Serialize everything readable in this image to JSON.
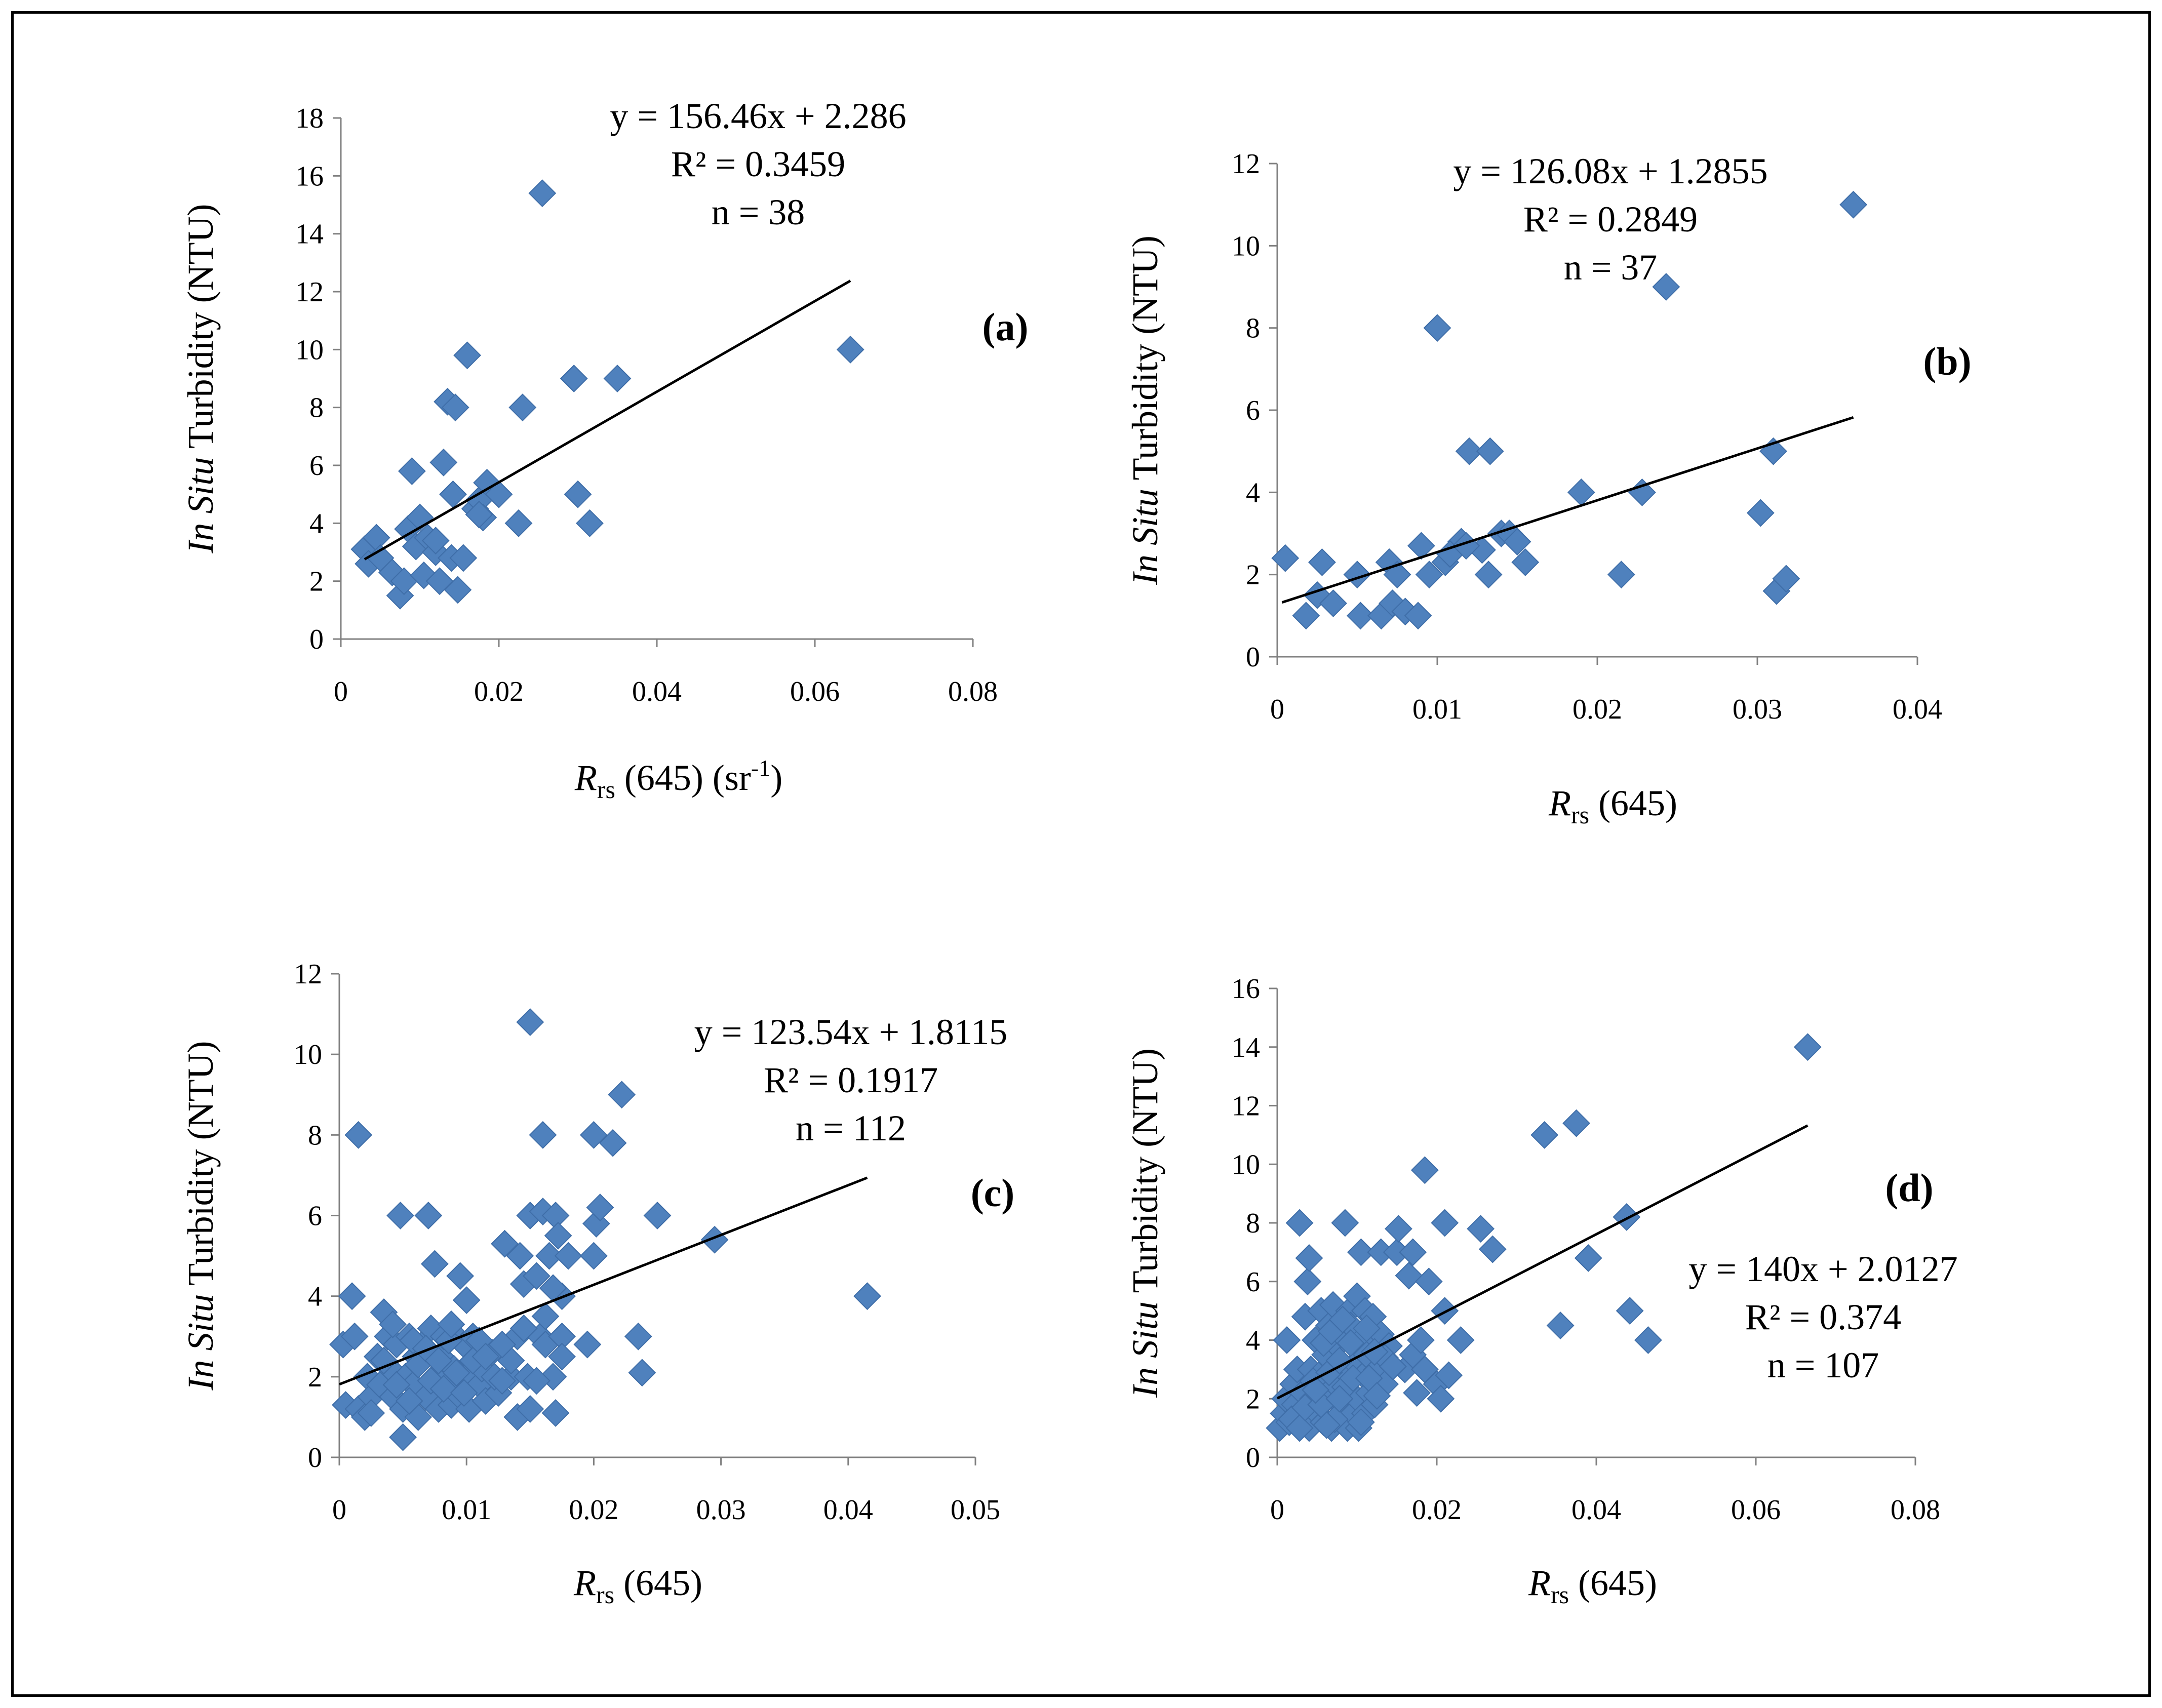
{
  "chart_data": [
    {
      "type": "scatter",
      "panel_label": "(a)",
      "ylabel_italic": "In Situ",
      "ylabel_rest": " Turbidity (NTU)",
      "xlabel_main": "R",
      "xlabel_sub": "rs",
      "xlabel_rest": " (645) (sr",
      "xlabel_sup": "-1",
      "xlabel_close": ")",
      "xlim": [
        0,
        0.08
      ],
      "ylim": [
        0,
        18
      ],
      "xticks": [
        0,
        0.02,
        0.04,
        0.06,
        0.08
      ],
      "xtick_labels": [
        "0",
        "0.02",
        "0.04",
        "0.06",
        "0.08"
      ],
      "yticks": [
        0,
        2,
        4,
        6,
        8,
        10,
        12,
        14,
        16,
        18
      ],
      "ytick_labels": [
        "0",
        "2",
        "4",
        "6",
        "8",
        "10",
        "12",
        "14",
        "16",
        "18"
      ],
      "equation": "y = 156.46x + 2.286",
      "r2": "R² = 0.3459",
      "n": "n = 38",
      "trendline": {
        "slope": 156.46,
        "intercept": 2.286,
        "x_range": [
          0.003,
          0.0645
        ]
      },
      "points": [
        [
          0.003,
          3.1
        ],
        [
          0.0035,
          2.6
        ],
        [
          0.0045,
          3.5
        ],
        [
          0.005,
          2.8
        ],
        [
          0.0065,
          2.3
        ],
        [
          0.0075,
          1.5
        ],
        [
          0.008,
          2.0
        ],
        [
          0.0085,
          3.8
        ],
        [
          0.009,
          5.8
        ],
        [
          0.0095,
          3.2
        ],
        [
          0.01,
          4.2
        ],
        [
          0.0105,
          2.2
        ],
        [
          0.011,
          3.5
        ],
        [
          0.012,
          3.0
        ],
        [
          0.0125,
          2.0
        ],
        [
          0.013,
          6.1
        ],
        [
          0.0135,
          8.2
        ],
        [
          0.014,
          2.8
        ],
        [
          0.0142,
          5.0
        ],
        [
          0.0145,
          8.0
        ],
        [
          0.0148,
          1.7
        ],
        [
          0.0155,
          2.8
        ],
        [
          0.016,
          9.8
        ],
        [
          0.017,
          4.5
        ],
        [
          0.0175,
          4.8
        ],
        [
          0.018,
          4.2
        ],
        [
          0.0185,
          5.4
        ],
        [
          0.02,
          5.0
        ],
        [
          0.0225,
          4.0
        ],
        [
          0.023,
          8.0
        ],
        [
          0.0255,
          15.4
        ],
        [
          0.0295,
          9.0
        ],
        [
          0.03,
          5.0
        ],
        [
          0.0315,
          4.0
        ],
        [
          0.035,
          9.0
        ],
        [
          0.0645,
          10.0
        ],
        [
          0.0175,
          4.3
        ],
        [
          0.012,
          3.4
        ]
      ]
    },
    {
      "type": "scatter",
      "panel_label": "(b)",
      "ylabel_italic": "In Situ",
      "ylabel_rest": " Turbidity (NTU)",
      "xlabel_main": "R",
      "xlabel_sub": "rs",
      "xlabel_rest": " (645)",
      "xlim": [
        0,
        0.04
      ],
      "ylim": [
        0,
        12
      ],
      "xticks": [
        0,
        0.01,
        0.02,
        0.03,
        0.04
      ],
      "xtick_labels": [
        "0",
        "0.01",
        "0.02",
        "0.03",
        "0.04"
      ],
      "yticks": [
        0,
        2,
        4,
        6,
        8,
        10,
        12
      ],
      "ytick_labels": [
        "0",
        "2",
        "4",
        "6",
        "8",
        "10",
        "12"
      ],
      "equation": "y = 126.08x + 1.2855",
      "r2": "R² = 0.2849",
      "n": "n = 37",
      "trendline": {
        "slope": 126.08,
        "intercept": 1.2855,
        "x_range": [
          0.0003,
          0.036
        ]
      },
      "points": [
        [
          0.0005,
          2.4
        ],
        [
          0.0018,
          1.0
        ],
        [
          0.0025,
          1.5
        ],
        [
          0.0028,
          2.3
        ],
        [
          0.0035,
          1.3
        ],
        [
          0.005,
          2.0
        ],
        [
          0.0052,
          1.0
        ],
        [
          0.0065,
          1.0
        ],
        [
          0.007,
          2.3
        ],
        [
          0.0072,
          1.3
        ],
        [
          0.0075,
          2.0
        ],
        [
          0.008,
          1.1
        ],
        [
          0.0088,
          1.0
        ],
        [
          0.009,
          2.7
        ],
        [
          0.0095,
          2.0
        ],
        [
          0.01,
          8.0
        ],
        [
          0.0105,
          2.3
        ],
        [
          0.0115,
          2.8
        ],
        [
          0.012,
          5.0
        ],
        [
          0.0128,
          2.6
        ],
        [
          0.0132,
          2.0
        ],
        [
          0.0133,
          5.0
        ],
        [
          0.014,
          3.0
        ],
        [
          0.0145,
          3.0
        ],
        [
          0.015,
          2.8
        ],
        [
          0.0155,
          2.3
        ],
        [
          0.019,
          4.0
        ],
        [
          0.0215,
          2.0
        ],
        [
          0.0228,
          4.0
        ],
        [
          0.0243,
          9.0
        ],
        [
          0.0302,
          3.5
        ],
        [
          0.031,
          5.0
        ],
        [
          0.0312,
          1.6
        ],
        [
          0.0318,
          1.9
        ],
        [
          0.036,
          11.0
        ],
        [
          0.0108,
          2.5
        ],
        [
          0.0118,
          2.7
        ]
      ]
    },
    {
      "type": "scatter",
      "panel_label": "(c)",
      "ylabel_italic": "In Situ",
      "ylabel_rest": " Turbidity (NTU)",
      "xlabel_main": "R",
      "xlabel_sub": "rs",
      "xlabel_rest": " (645)",
      "xlim": [
        0,
        0.05
      ],
      "ylim": [
        0,
        12
      ],
      "xticks": [
        0,
        0.01,
        0.02,
        0.03,
        0.04,
        0.05
      ],
      "xtick_labels": [
        "0",
        "0.01",
        "0.02",
        "0.03",
        "0.04",
        "0.05"
      ],
      "yticks": [
        0,
        2,
        4,
        6,
        8,
        10,
        12
      ],
      "ytick_labels": [
        "0",
        "2",
        "4",
        "6",
        "8",
        "10",
        "12"
      ],
      "equation": "y = 123.54x + 1.8115",
      "r2": "R² = 0.1917",
      "n": "n = 112",
      "trendline": {
        "slope": 123.54,
        "intercept": 1.8115,
        "x_range": [
          0.0,
          0.0415
        ]
      },
      "points": [
        [
          0.0003,
          2.8
        ],
        [
          0.0005,
          1.3
        ],
        [
          0.001,
          4.0
        ],
        [
          0.0012,
          3.0
        ],
        [
          0.0015,
          8.0
        ],
        [
          0.0015,
          1.2
        ],
        [
          0.002,
          1.0
        ],
        [
          0.0022,
          2.0
        ],
        [
          0.0025,
          1.5
        ],
        [
          0.003,
          2.5
        ],
        [
          0.0032,
          1.8
        ],
        [
          0.0035,
          3.6
        ],
        [
          0.0038,
          3.0
        ],
        [
          0.004,
          2.2
        ],
        [
          0.0042,
          1.5
        ],
        [
          0.0045,
          2.8
        ],
        [
          0.0048,
          6.0
        ],
        [
          0.005,
          0.5
        ],
        [
          0.005,
          1.2
        ],
        [
          0.0052,
          2.0
        ],
        [
          0.0055,
          3.0
        ],
        [
          0.0058,
          1.8
        ],
        [
          0.006,
          2.5
        ],
        [
          0.0062,
          1.0
        ],
        [
          0.0065,
          2.8
        ],
        [
          0.0068,
          1.5
        ],
        [
          0.007,
          6.0
        ],
        [
          0.0072,
          3.2
        ],
        [
          0.0075,
          4.8
        ],
        [
          0.0075,
          2.0
        ],
        [
          0.0078,
          1.2
        ],
        [
          0.008,
          2.5
        ],
        [
          0.0082,
          3.0
        ],
        [
          0.0085,
          1.8
        ],
        [
          0.0088,
          1.3
        ],
        [
          0.009,
          2.2
        ],
        [
          0.0092,
          3.0
        ],
        [
          0.0095,
          4.5
        ],
        [
          0.0095,
          1.5
        ],
        [
          0.0098,
          2.8
        ],
        [
          0.01,
          3.9
        ],
        [
          0.01,
          2.0
        ],
        [
          0.0102,
          1.2
        ],
        [
          0.0105,
          3.0
        ],
        [
          0.0108,
          2.5
        ],
        [
          0.011,
          1.8
        ],
        [
          0.0112,
          2.2
        ],
        [
          0.0115,
          1.4
        ],
        [
          0.012,
          2.6
        ],
        [
          0.0125,
          1.6
        ],
        [
          0.013,
          5.3
        ],
        [
          0.0135,
          2.0
        ],
        [
          0.014,
          1.0
        ],
        [
          0.014,
          3.0
        ],
        [
          0.0142,
          5.0
        ],
        [
          0.0145,
          4.3
        ],
        [
          0.0148,
          2.0
        ],
        [
          0.015,
          6.0
        ],
        [
          0.015,
          10.8
        ],
        [
          0.015,
          1.2
        ],
        [
          0.0155,
          4.5
        ],
        [
          0.0158,
          3.0
        ],
        [
          0.016,
          8.0
        ],
        [
          0.016,
          6.1
        ],
        [
          0.0162,
          2.8
        ],
        [
          0.0165,
          5.0
        ],
        [
          0.0168,
          2.0
        ],
        [
          0.017,
          6.0
        ],
        [
          0.017,
          1.1
        ],
        [
          0.0172,
          5.5
        ],
        [
          0.0175,
          4.0
        ],
        [
          0.0175,
          3.0
        ],
        [
          0.018,
          5.0
        ],
        [
          0.0195,
          2.8
        ],
        [
          0.02,
          8.0
        ],
        [
          0.02,
          5.0
        ],
        [
          0.0202,
          5.8
        ],
        [
          0.0205,
          6.2
        ],
        [
          0.0215,
          7.8
        ],
        [
          0.0222,
          9.0
        ],
        [
          0.0235,
          3.0
        ],
        [
          0.0238,
          2.1
        ],
        [
          0.025,
          6.0
        ],
        [
          0.0295,
          5.4
        ],
        [
          0.0415,
          4.0
        ],
        [
          0.0035,
          2.4
        ],
        [
          0.0045,
          1.8
        ],
        [
          0.0058,
          2.9
        ],
        [
          0.0062,
          2.3
        ],
        [
          0.0068,
          2.7
        ],
        [
          0.0072,
          1.9
        ],
        [
          0.0078,
          2.4
        ],
        [
          0.0082,
          1.7
        ],
        [
          0.0086,
          2.9
        ],
        [
          0.0092,
          2.1
        ],
        [
          0.0098,
          1.6
        ],
        [
          0.0105,
          2.4
        ],
        [
          0.011,
          2.9
        ],
        [
          0.0115,
          2.5
        ],
        [
          0.0122,
          2.0
        ],
        [
          0.0128,
          1.9
        ],
        [
          0.0135,
          2.4
        ],
        [
          0.0145,
          3.2
        ],
        [
          0.0155,
          1.9
        ],
        [
          0.0162,
          3.5
        ],
        [
          0.0168,
          4.2
        ],
        [
          0.0175,
          2.5
        ],
        [
          0.0025,
          1.1
        ],
        [
          0.0042,
          3.3
        ],
        [
          0.0055,
          1.4
        ],
        [
          0.0088,
          3.3
        ],
        [
          0.0128,
          2.8
        ]
      ]
    },
    {
      "type": "scatter",
      "panel_label": "(d)",
      "ylabel_italic": "In Situ",
      "ylabel_rest": " Turbidity (NTU)",
      "xlabel_main": "R",
      "xlabel_sub": "rs",
      "xlabel_rest": " (645)",
      "xlim": [
        0,
        0.08
      ],
      "ylim": [
        0,
        16
      ],
      "xticks": [
        0,
        0.02,
        0.04,
        0.06,
        0.08
      ],
      "xtick_labels": [
        "0",
        "0.02",
        "0.04",
        "0.06",
        "0.08"
      ],
      "yticks": [
        0,
        2,
        4,
        6,
        8,
        10,
        12,
        14,
        16
      ],
      "ytick_labels": [
        "0",
        "2",
        "4",
        "6",
        "8",
        "10",
        "12",
        "14",
        "16"
      ],
      "equation": "y = 140x + 2.0127",
      "r2": "R² = 0.374",
      "n": "n = 107",
      "trendline": {
        "slope": 140,
        "intercept": 2.0127,
        "x_range": [
          0.0,
          0.0665
        ]
      },
      "points": [
        [
          0.0003,
          1.0
        ],
        [
          0.0008,
          1.5
        ],
        [
          0.001,
          2.0
        ],
        [
          0.0012,
          4.0
        ],
        [
          0.0015,
          1.2
        ],
        [
          0.002,
          2.5
        ],
        [
          0.0022,
          1.8
        ],
        [
          0.0025,
          3.0
        ],
        [
          0.0028,
          8.0
        ],
        [
          0.003,
          1.5
        ],
        [
          0.0032,
          2.2
        ],
        [
          0.0035,
          4.8
        ],
        [
          0.0038,
          6.0
        ],
        [
          0.004,
          6.8
        ],
        [
          0.004,
          1.0
        ],
        [
          0.0042,
          3.0
        ],
        [
          0.0045,
          2.0
        ],
        [
          0.0048,
          4.0
        ],
        [
          0.005,
          1.5
        ],
        [
          0.0052,
          2.8
        ],
        [
          0.0055,
          5.0
        ],
        [
          0.0058,
          1.2
        ],
        [
          0.006,
          3.5
        ],
        [
          0.0062,
          2.0
        ],
        [
          0.0065,
          4.5
        ],
        [
          0.0068,
          1.0
        ],
        [
          0.007,
          5.2
        ],
        [
          0.0072,
          2.5
        ],
        [
          0.0075,
          3.8
        ],
        [
          0.0078,
          1.8
        ],
        [
          0.008,
          4.2
        ],
        [
          0.0082,
          3.0
        ],
        [
          0.0085,
          8.0
        ],
        [
          0.0088,
          1.0
        ],
        [
          0.009,
          5.0
        ],
        [
          0.009,
          2.2
        ],
        [
          0.0092,
          4.5
        ],
        [
          0.0095,
          1.5
        ],
        [
          0.0098,
          3.2
        ],
        [
          0.01,
          5.5
        ],
        [
          0.01,
          2.0
        ],
        [
          0.0102,
          1.0
        ],
        [
          0.0105,
          4.0
        ],
        [
          0.0105,
          7.0
        ],
        [
          0.0108,
          2.8
        ],
        [
          0.011,
          5.0
        ],
        [
          0.011,
          1.5
        ],
        [
          0.0112,
          3.5
        ],
        [
          0.0115,
          2.2
        ],
        [
          0.012,
          4.8
        ],
        [
          0.0122,
          1.8
        ],
        [
          0.0125,
          3.0
        ],
        [
          0.013,
          7.0
        ],
        [
          0.013,
          4.2
        ],
        [
          0.0135,
          2.5
        ],
        [
          0.014,
          3.8
        ],
        [
          0.015,
          7.0
        ],
        [
          0.0152,
          7.8
        ],
        [
          0.016,
          3.0
        ],
        [
          0.0165,
          6.2
        ],
        [
          0.017,
          7.0
        ],
        [
          0.017,
          3.5
        ],
        [
          0.0175,
          2.2
        ],
        [
          0.018,
          4.0
        ],
        [
          0.0185,
          9.8
        ],
        [
          0.0185,
          3.0
        ],
        [
          0.019,
          6.0
        ],
        [
          0.02,
          2.5
        ],
        [
          0.0205,
          2.0
        ],
        [
          0.021,
          8.0
        ],
        [
          0.021,
          5.0
        ],
        [
          0.0215,
          2.8
        ],
        [
          0.023,
          4.0
        ],
        [
          0.0255,
          7.8
        ],
        [
          0.027,
          7.1
        ],
        [
          0.0335,
          11.0
        ],
        [
          0.0355,
          4.5
        ],
        [
          0.0375,
          11.4
        ],
        [
          0.039,
          6.8
        ],
        [
          0.0438,
          8.2
        ],
        [
          0.0442,
          5.0
        ],
        [
          0.0465,
          4.0
        ],
        [
          0.0665,
          14.0
        ],
        [
          0.0018,
          1.3
        ],
        [
          0.0028,
          1.0
        ],
        [
          0.0035,
          1.7
        ],
        [
          0.0045,
          2.6
        ],
        [
          0.0055,
          1.8
        ],
        [
          0.0065,
          2.9
        ],
        [
          0.0072,
          1.3
        ],
        [
          0.0078,
          3.3
        ],
        [
          0.0085,
          2.4
        ],
        [
          0.0095,
          2.7
        ],
        [
          0.0105,
          1.2
        ],
        [
          0.0115,
          2.7
        ],
        [
          0.0125,
          2.1
        ],
        [
          0.0135,
          3.4
        ],
        [
          0.0145,
          3.1
        ],
        [
          0.0058,
          3.9
        ],
        [
          0.0068,
          4.3
        ],
        [
          0.0082,
          4.7
        ],
        [
          0.0092,
          3.9
        ],
        [
          0.0112,
          4.4
        ],
        [
          0.0122,
          3.6
        ],
        [
          0.0048,
          2.3
        ],
        [
          0.0062,
          1.1
        ],
        [
          0.0078,
          2.0
        ]
      ]
    }
  ]
}
